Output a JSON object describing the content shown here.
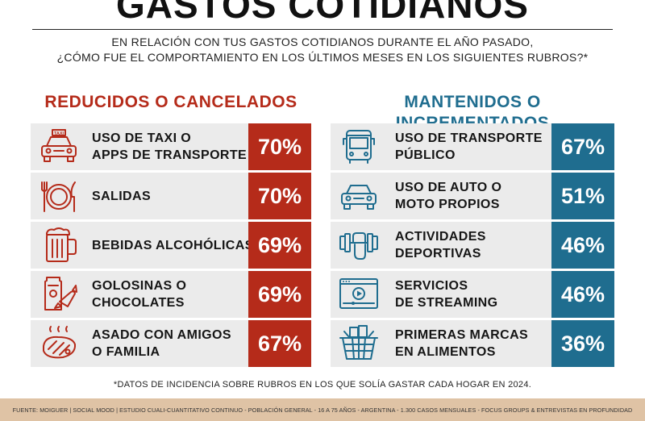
{
  "header": {
    "title": "GASTOS COTIDIANOS",
    "subtitle_line1": "EN RELACIÓN CON TUS GASTOS COTIDIANOS DURANTE EL AÑO PASADO,",
    "subtitle_line2": "¿CÓMO FUE EL COMPORTAMIENTO EN LOS ÚLTIMOS MESES EN LOS SIGUIENTES RUBROS?*"
  },
  "chart_data": {
    "type": "table",
    "title": "GASTOS COTIDIANOS",
    "unit": "%",
    "colors": {
      "reduced": "#b52b1a",
      "maintained": "#1f6d8f"
    },
    "groups": [
      {
        "name": "REDUCIDOS O CANCELADOS",
        "items": [
          {
            "label": "USO DE TAXI O\nAPPS DE TRANSPORTE",
            "value": 70,
            "display": "70%",
            "icon": "taxi-icon"
          },
          {
            "label": "SALIDAS",
            "value": 70,
            "display": "70%",
            "icon": "plate-cutlery-icon"
          },
          {
            "label": "BEBIDAS ALCOHÓLICAS",
            "value": 69,
            "display": "69%",
            "icon": "beer-mug-icon"
          },
          {
            "label": "GOLOSINAS O\nCHOCOLATES",
            "value": 69,
            "display": "69%",
            "icon": "candy-icon"
          },
          {
            "label": "ASADO CON AMIGOS\nO FAMILIA",
            "value": 67,
            "display": "67%",
            "icon": "steak-icon"
          }
        ]
      },
      {
        "name": "MANTENIDOS O INCREMENTADOS",
        "items": [
          {
            "label": "USO DE TRANSPORTE\nPÚBLICO",
            "value": 67,
            "display": "67%",
            "icon": "bus-icon"
          },
          {
            "label": "USO DE AUTO O\nMOTO PROPIOS",
            "value": 51,
            "display": "51%",
            "icon": "car-icon"
          },
          {
            "label": "ACTIVIDADES\nDEPORTIVAS",
            "value": 46,
            "display": "46%",
            "icon": "dumbbell-icon"
          },
          {
            "label": "SERVICIOS\nDE STREAMING",
            "value": 46,
            "display": "46%",
            "icon": "video-player-icon"
          },
          {
            "label": "PRIMERAS MARCAS\nEN ALIMENTOS",
            "value": 36,
            "display": "36%",
            "icon": "shopping-basket-icon"
          }
        ]
      }
    ]
  },
  "footnote": "*DATOS DE INCIDENCIA SOBRE RUBROS EN LOS QUE SOLÍA GASTAR CADA HOGAR EN 2024.",
  "source": "FUENTE: MOIGUER | SOCIAL MOOD | ESTUDIO CUALI-CUANTITATIVO CONTINUO - POBLACIÓN GENERAL - 16 A 75 AÑOS - ARGENTINA - 1.300 CASOS MENSUALES - FOCUS GROUPS & ENTREVISTAS EN PROFUNDIDAD"
}
